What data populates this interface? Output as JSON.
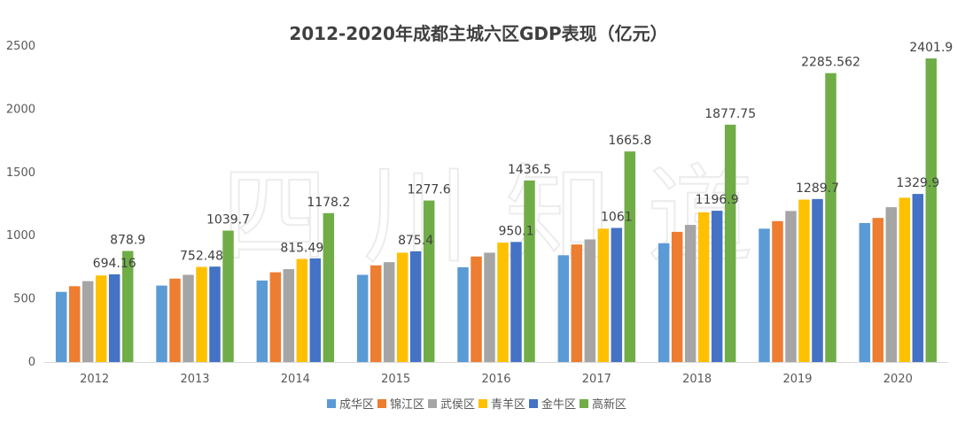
{
  "chart_data": {
    "type": "bar",
    "title": "2012-2020年成都主城六区GDP表现（亿元）",
    "watermark": "四川知道",
    "categories": [
      "2012",
      "2013",
      "2014",
      "2015",
      "2016",
      "2017",
      "2018",
      "2019",
      "2020"
    ],
    "ylim": [
      0,
      2500
    ],
    "yticks": [
      0,
      500,
      1000,
      1500,
      2000,
      2500
    ],
    "grid": false,
    "legend_position": "bottom",
    "series": [
      {
        "name": "成华区",
        "color": "#5B9BD5",
        "values": [
          555,
          605,
          645,
          690,
          750,
          845,
          940,
          1055,
          1100
        ]
      },
      {
        "name": "锦江区",
        "color": "#ED7D31",
        "values": [
          600,
          660,
          710,
          765,
          835,
          930,
          1030,
          1115,
          1140
        ]
      },
      {
        "name": "武侯区",
        "color": "#A5A5A5",
        "values": [
          640,
          690,
          735,
          790,
          865,
          970,
          1085,
          1195,
          1225
        ]
      },
      {
        "name": "青羊区",
        "color": "#FFC000",
        "values": [
          685,
          752.48,
          815.49,
          865,
          945,
          1055,
          1185,
          1285,
          1300
        ]
      },
      {
        "name": "金牛区",
        "color": "#4472C4",
        "values": [
          694.16,
          755,
          820,
          875.4,
          950.1,
          1061,
          1196.9,
          1289.7,
          1329.9
        ]
      },
      {
        "name": "高新区",
        "color": "#70AD47",
        "values": [
          878.9,
          1039.7,
          1178.2,
          1277.6,
          1436.5,
          1665.8,
          1877.75,
          2285.562,
          2401.9
        ]
      }
    ],
    "data_labels": [
      {
        "category": "2012",
        "series": "金牛区",
        "text": "694.16"
      },
      {
        "category": "2012",
        "series": "高新区",
        "text": "878.9"
      },
      {
        "category": "2013",
        "series": "青羊区",
        "text": "752.48"
      },
      {
        "category": "2013",
        "series": "高新区",
        "text": "1039.7"
      },
      {
        "category": "2014",
        "series": "青羊区",
        "text": "815.49"
      },
      {
        "category": "2014",
        "series": "高新区",
        "text": "1178.2"
      },
      {
        "category": "2015",
        "series": "金牛区",
        "text": "875.4"
      },
      {
        "category": "2015",
        "series": "高新区",
        "text": "1277.6"
      },
      {
        "category": "2016",
        "series": "金牛区",
        "text": "950.1"
      },
      {
        "category": "2016",
        "series": "高新区",
        "text": "1436.5"
      },
      {
        "category": "2017",
        "series": "金牛区",
        "text": "1061"
      },
      {
        "category": "2017",
        "series": "高新区",
        "text": "1665.8"
      },
      {
        "category": "2018",
        "series": "金牛区",
        "text": "1196.9"
      },
      {
        "category": "2018",
        "series": "高新区",
        "text": "1877.75"
      },
      {
        "category": "2019",
        "series": "金牛区",
        "text": "1289.7"
      },
      {
        "category": "2019",
        "series": "高新区",
        "text": "2285.562"
      },
      {
        "category": "2020",
        "series": "金牛区",
        "text": "1329.9"
      },
      {
        "category": "2020",
        "series": "高新区",
        "text": "2401.9"
      }
    ]
  }
}
